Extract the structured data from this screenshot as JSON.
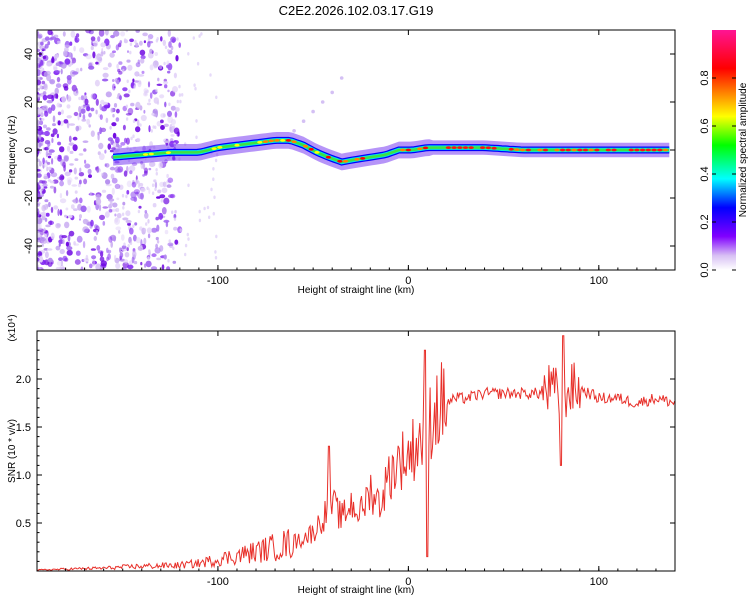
{
  "title": "C2E2.2026.102.03.17.G19",
  "chart_data": [
    {
      "type": "heatmap",
      "name": "spectrogram",
      "xlabel": "Height of straight line (km)",
      "ylabel": "Frequency (Hz)",
      "xlim": [
        -195,
        140
      ],
      "ylim": [
        -50,
        50
      ],
      "xticks": [
        -100,
        0,
        100
      ],
      "xtick_labels": [
        "-100",
        "0",
        "100"
      ],
      "yticks": [
        -40,
        -20,
        0,
        20,
        40
      ],
      "ytick_labels": [
        "-40",
        "-20",
        "0",
        "20",
        "40"
      ],
      "ridge": {
        "x": [
          -155,
          -140,
          -125,
          -110,
          -100,
          -90,
          -80,
          -70,
          -62,
          -55,
          -48,
          -42,
          -35,
          -28,
          -20,
          -12,
          -5,
          2,
          10,
          20,
          40,
          60,
          80,
          100,
          120,
          138
        ],
        "y": [
          -3,
          -2,
          -1,
          -1,
          1,
          2,
          3,
          4,
          4,
          2,
          -1,
          -3,
          -5,
          -4,
          -3,
          -2,
          0,
          0,
          1,
          1,
          1,
          0,
          0,
          0,
          0,
          0
        ]
      },
      "colorbar": {
        "label": "Normalized spectral amplitude",
        "range": [
          0,
          1
        ],
        "ticks": [
          0.0,
          0.2,
          0.4,
          0.6,
          0.8
        ],
        "tick_labels": [
          "0.0",
          "0.2",
          "0.4",
          "0.6",
          "0.8"
        ],
        "colors": [
          "#ffffff",
          "#c8a8f0",
          "#8000ff",
          "#0000ff",
          "#00ffff",
          "#00ff00",
          "#ffff00",
          "#ff8000",
          "#ff0000",
          "#ff00a0"
        ]
      }
    },
    {
      "type": "line",
      "name": "snr",
      "xlabel": "Height of straight line (km)",
      "ylabel": "SNR (10 * v/v)",
      "multiplier": "(x10⁴)",
      "xlim": [
        -195,
        140
      ],
      "ylim": [
        0,
        2.5
      ],
      "xticks": [
        -100,
        0,
        100
      ],
      "xtick_labels": [
        "-100",
        "0",
        "100"
      ],
      "yticks": [
        0.5,
        1.0,
        1.5,
        2.0
      ],
      "ytick_labels": [
        "0.5",
        "1.0",
        "1.5",
        "2.0"
      ],
      "color": "#e8302a",
      "series": [
        {
          "name": "SNR",
          "x": [
            -195,
            -180,
            -160,
            -140,
            -120,
            -110,
            -100,
            -90,
            -80,
            -70,
            -60,
            -50,
            -45,
            -40,
            -35,
            -30,
            -25,
            -20,
            -15,
            -10,
            -5,
            0,
            5,
            9,
            12,
            15,
            20,
            25,
            30,
            40,
            50,
            60,
            70,
            75,
            80,
            85,
            90,
            100,
            110,
            120,
            130,
            140
          ],
          "y": [
            0.01,
            0.02,
            0.03,
            0.05,
            0.06,
            0.08,
            0.12,
            0.16,
            0.2,
            0.25,
            0.3,
            0.4,
            0.55,
            0.7,
            0.55,
            0.7,
            0.6,
            0.85,
            0.7,
            1.0,
            1.15,
            1.2,
            1.35,
            1.45,
            1.6,
            1.7,
            1.75,
            1.8,
            1.8,
            1.85,
            1.85,
            1.85,
            1.85,
            1.9,
            1.8,
            1.9,
            1.9,
            1.8,
            1.8,
            1.75,
            1.8,
            1.75
          ]
        }
      ]
    }
  ]
}
